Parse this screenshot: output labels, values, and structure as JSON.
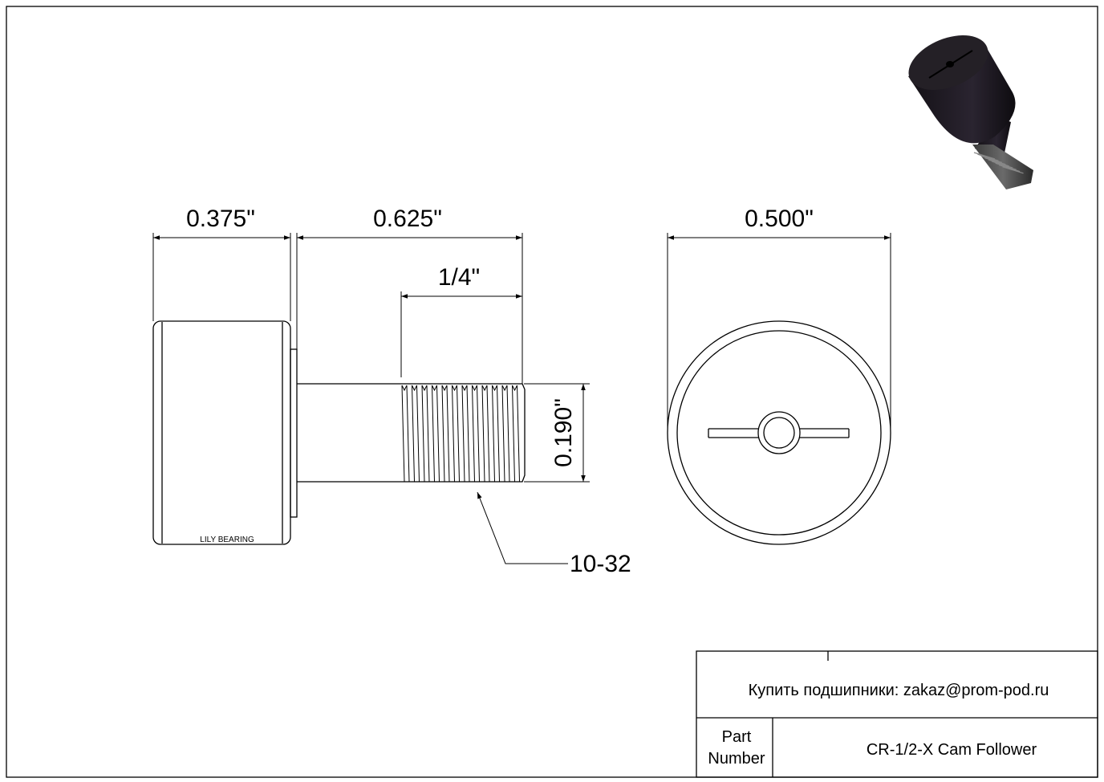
{
  "drawing": {
    "dimensions": {
      "roller_width": "0.375\"",
      "stud_length": "0.625\"",
      "thread_length": "1/4\"",
      "stud_diameter": "0.190\"",
      "roller_diameter": "0.500\"",
      "thread_spec": "10-32"
    },
    "roller_marking": "LILY BEARING"
  },
  "title_block": {
    "contact": "Купить подшипники: zakaz@prom-pod.ru",
    "part_label_line1": "Part",
    "part_label_line2": "Number",
    "part_number": "CR-1/2-X Cam Follower"
  },
  "colors": {
    "line": "#000000",
    "product_render": "#1e1a20"
  }
}
